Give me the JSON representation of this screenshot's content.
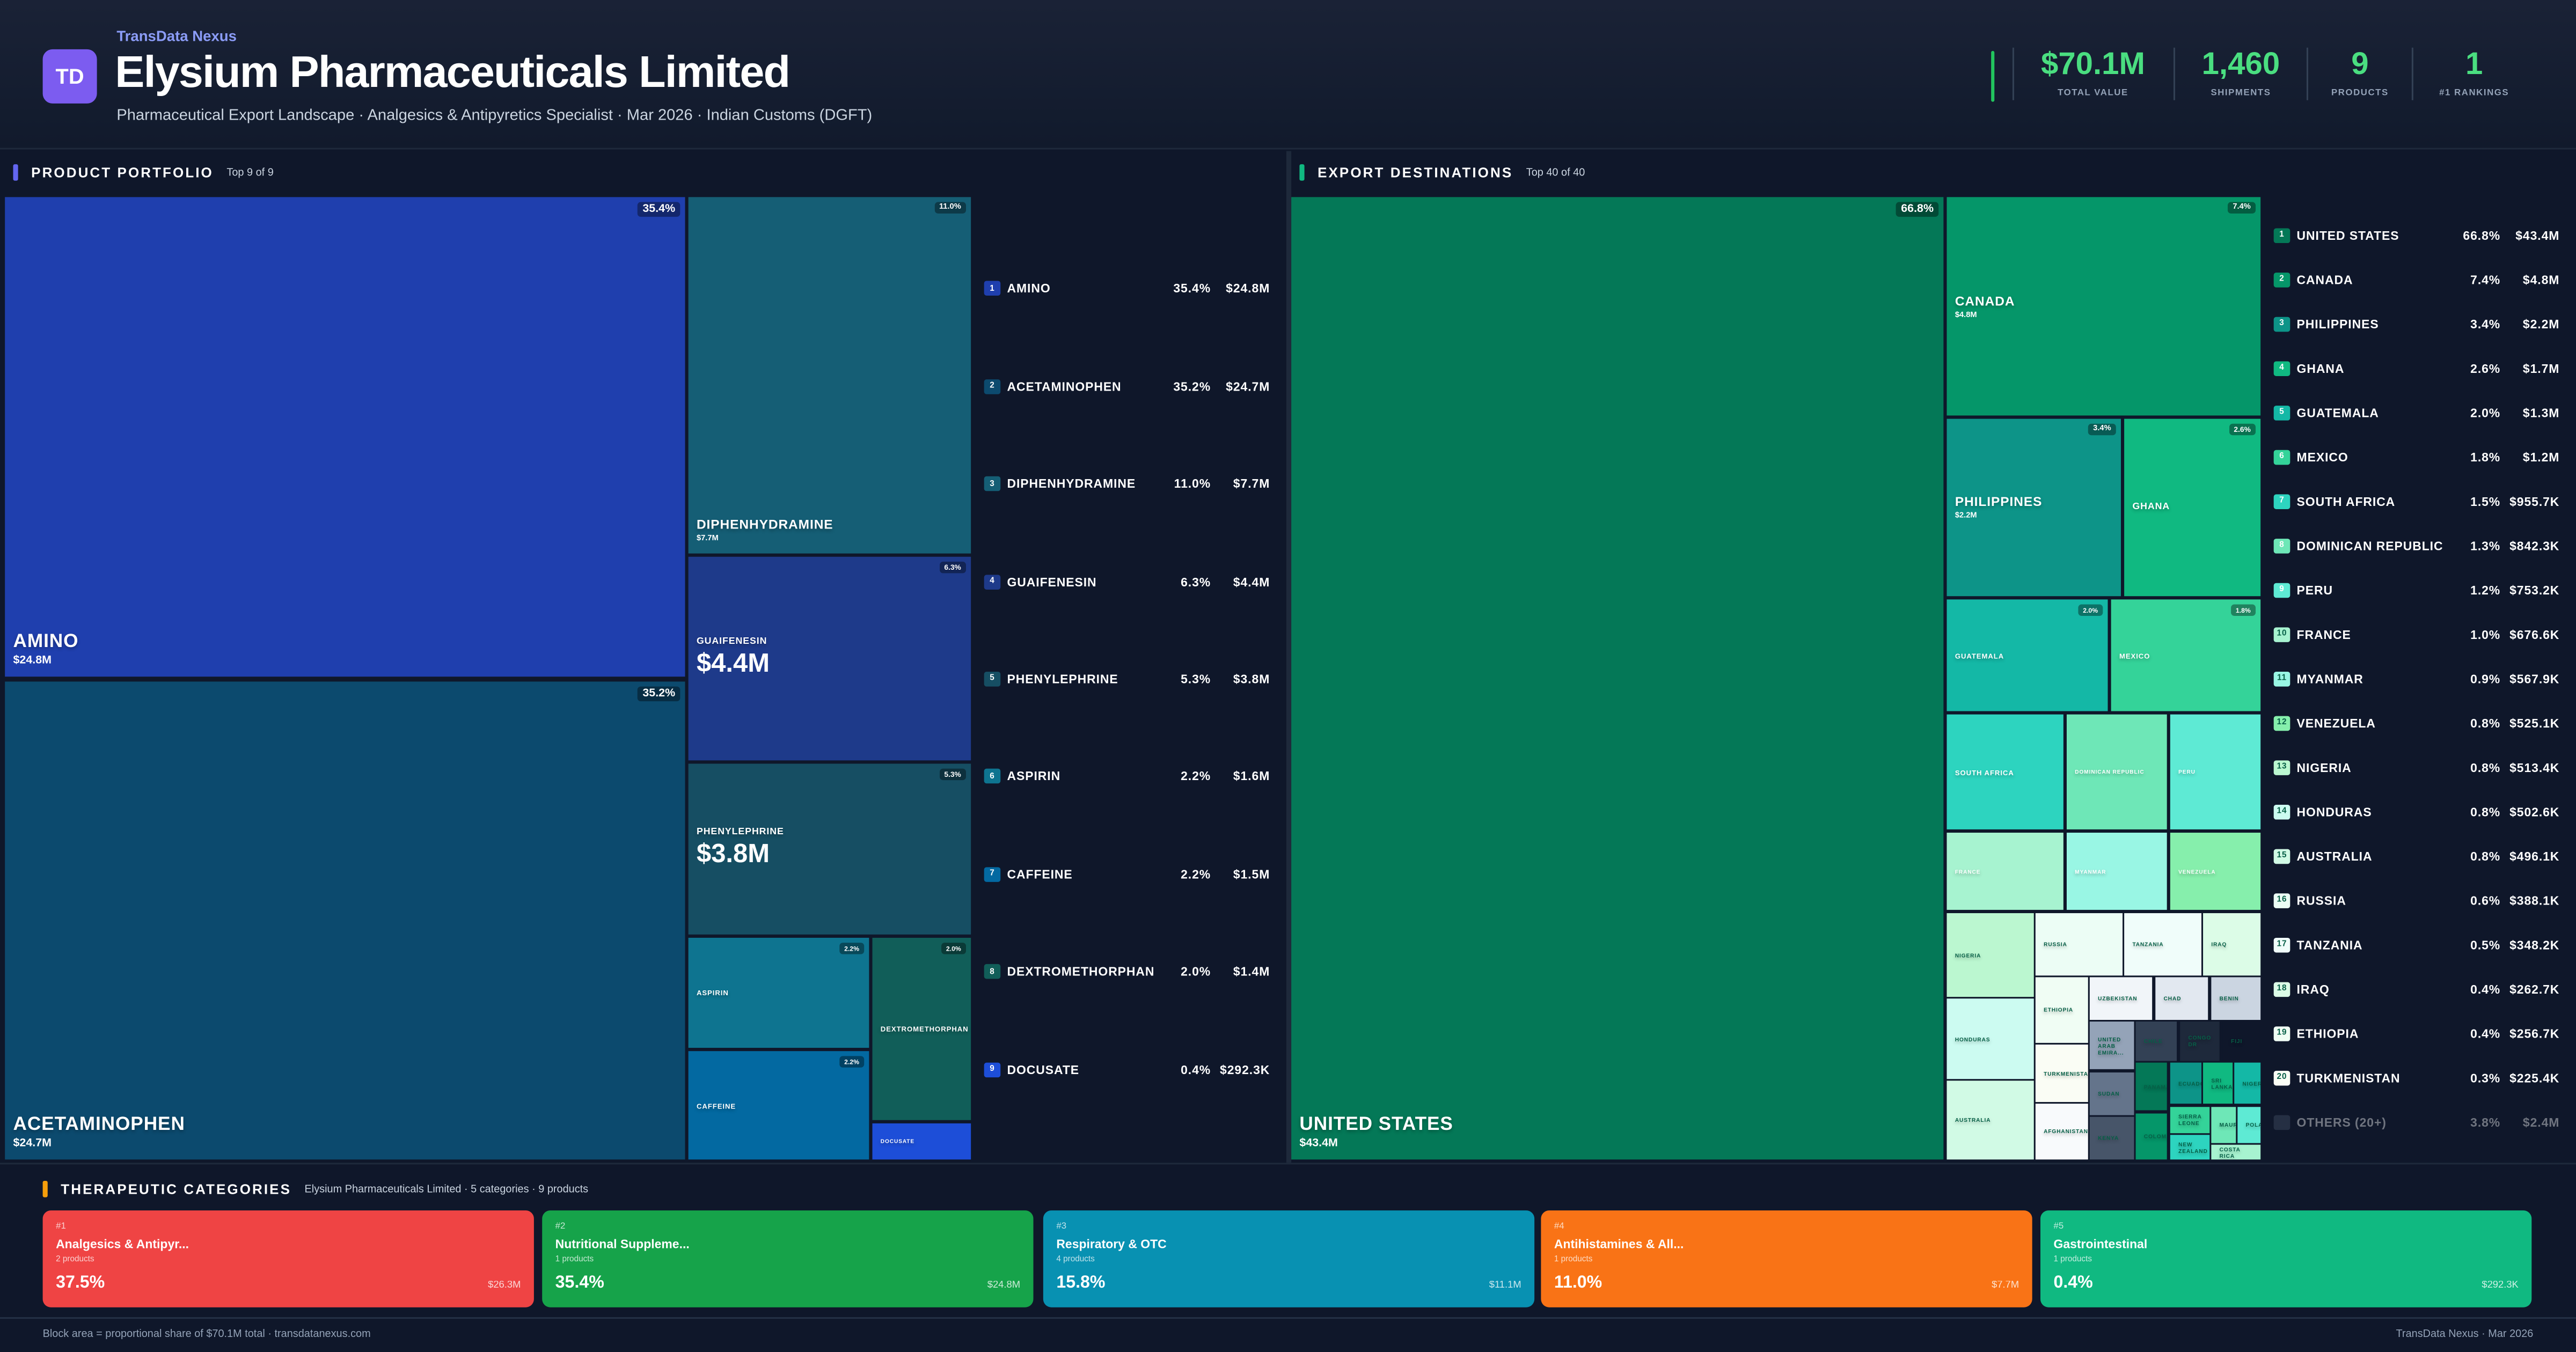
{
  "header": {
    "logo": "TD",
    "brand": "TransData Nexus",
    "title": "Elysium Pharmaceuticals Limited",
    "subtitle": "Pharmaceutical Export Landscape · Analgesics & Antipyretics Specialist · Mar 2026 · Indian Customs (DGFT)",
    "stats": [
      {
        "value": "$70.1M",
        "label": "TOTAL VALUE"
      },
      {
        "value": "1,460",
        "label": "SHIPMENTS"
      },
      {
        "value": "9",
        "label": "PRODUCTS"
      },
      {
        "value": "1",
        "label": "#1 RANKINGS"
      }
    ]
  },
  "products": {
    "title": "PRODUCT PORTFOLIO",
    "subtitle": "Top 9 of 9",
    "accent": "#6366f1",
    "items": [
      {
        "rank": "1",
        "name": "AMINO",
        "pct": "35.4%",
        "value": "$24.8M",
        "color": "#1f3fae"
      },
      {
        "rank": "2",
        "name": "ACETAMINOPHEN",
        "pct": "35.2%",
        "value": "$24.7M",
        "color": "#0c4a6e"
      },
      {
        "rank": "3",
        "name": "DIPHENHYDRAMINE",
        "pct": "11.0%",
        "value": "$7.7M",
        "color": "#155e75"
      },
      {
        "rank": "4",
        "name": "GUAIFENESIN",
        "pct": "6.3%",
        "value": "$4.4M",
        "color": "#1e3a8a"
      },
      {
        "rank": "5",
        "name": "PHENYLEPHRINE",
        "pct": "5.3%",
        "value": "$3.8M",
        "color": "#164e63"
      },
      {
        "rank": "6",
        "name": "ASPIRIN",
        "pct": "2.2%",
        "value": "$1.6M",
        "color": "#0e7490"
      },
      {
        "rank": "7",
        "name": "CAFFEINE",
        "pct": "2.2%",
        "value": "$1.5M",
        "color": "#0369a1"
      },
      {
        "rank": "8",
        "name": "DEXTROMETHORPHAN",
        "pct": "2.0%",
        "value": "$1.4M",
        "color": "#115e59"
      },
      {
        "rank": "9",
        "name": "DOCUSATE",
        "pct": "0.4%",
        "value": "$292.3K",
        "color": "#1d4ed8"
      }
    ]
  },
  "destinations": {
    "title": "EXPORT DESTINATIONS",
    "subtitle": "Top 40 of 40",
    "accent": "#10b981",
    "items": [
      {
        "rank": "1",
        "name": "UNITED STATES",
        "pct": "66.8%",
        "value": "$43.4M",
        "color": "#047857"
      },
      {
        "rank": "2",
        "name": "CANADA",
        "pct": "7.4%",
        "value": "$4.8M",
        "color": "#059669"
      },
      {
        "rank": "3",
        "name": "PHILIPPINES",
        "pct": "3.4%",
        "value": "$2.2M",
        "color": "#0d9488"
      },
      {
        "rank": "4",
        "name": "GHANA",
        "pct": "2.6%",
        "value": "$1.7M",
        "color": "#10b981"
      },
      {
        "rank": "5",
        "name": "GUATEMALA",
        "pct": "2.0%",
        "value": "$1.3M",
        "color": "#14b8a6"
      },
      {
        "rank": "6",
        "name": "MEXICO",
        "pct": "1.8%",
        "value": "$1.2M",
        "color": "#34d399"
      },
      {
        "rank": "7",
        "name": "SOUTH AFRICA",
        "pct": "1.5%",
        "value": "$955.7K",
        "color": "#2dd4bf"
      },
      {
        "rank": "8",
        "name": "DOMINICAN REPUBLIC",
        "pct": "1.3%",
        "value": "$842.3K",
        "color": "#6ee7b7"
      },
      {
        "rank": "9",
        "name": "PERU",
        "pct": "1.2%",
        "value": "$753.2K",
        "color": "#5eead4"
      },
      {
        "rank": "10",
        "name": "FRANCE",
        "pct": "1.0%",
        "value": "$676.6K",
        "color": "#a7f3d0"
      },
      {
        "rank": "11",
        "name": "MYANMAR",
        "pct": "0.9%",
        "value": "$567.9K",
        "color": "#99f6e4"
      },
      {
        "rank": "12",
        "name": "VENEZUELA",
        "pct": "0.8%",
        "value": "$525.1K",
        "color": "#86efac"
      },
      {
        "rank": "13",
        "name": "NIGERIA",
        "pct": "0.8%",
        "value": "$513.4K",
        "color": "#bbf7d0"
      },
      {
        "rank": "14",
        "name": "HONDURAS",
        "pct": "0.8%",
        "value": "$502.6K",
        "color": "#ccfbf1"
      },
      {
        "rank": "15",
        "name": "AUSTRALIA",
        "pct": "0.8%",
        "value": "$496.1K",
        "color": "#d1fae5"
      },
      {
        "rank": "16",
        "name": "RUSSIA",
        "pct": "0.6%",
        "value": "$388.1K",
        "color": "#ecfdf5"
      },
      {
        "rank": "17",
        "name": "TANZANIA",
        "pct": "0.5%",
        "value": "$348.2K",
        "color": "#f0fdfa"
      },
      {
        "rank": "18",
        "name": "IRAQ",
        "pct": "0.4%",
        "value": "$262.7K",
        "color": "#dcfce7"
      },
      {
        "rank": "19",
        "name": "ETHIOPIA",
        "pct": "0.4%",
        "value": "$256.7K",
        "color": "#f0fdf4"
      },
      {
        "rank": "20",
        "name": "TURKMENISTAN",
        "pct": "0.3%",
        "value": "$225.4K",
        "color": "#fafdf5"
      }
    ],
    "others": {
      "name": "OTHERS (20+)",
      "pct": "3.8%",
      "value": "$2.4M",
      "color": "#475569"
    },
    "other_tiles": [
      {
        "name": "AFGHANISTAN",
        "color": "#f8fafc"
      },
      {
        "name": "UZBEKISTAN",
        "color": "#f1f5f9"
      },
      {
        "name": "CHAD",
        "color": "#e2e8f0"
      },
      {
        "name": "BENIN",
        "color": "#cbd5e1"
      },
      {
        "name": "UNITED ARAB EMIRA...",
        "color": "#94a3b8"
      },
      {
        "name": "SUDAN",
        "color": "#64748b"
      },
      {
        "name": "KENYA",
        "color": "#475569"
      },
      {
        "name": "CHILE",
        "color": "#334155"
      },
      {
        "name": "CONGO DR",
        "color": "#1e293b"
      },
      {
        "name": "FIJI",
        "color": "#0f172a"
      },
      {
        "name": "PANAMA",
        "color": "#047857"
      },
      {
        "name": "COLOMBIA",
        "color": "#059669"
      },
      {
        "name": "ECUADOR",
        "color": "#0d9488"
      },
      {
        "name": "SRI LANKA",
        "color": "#10b981"
      },
      {
        "name": "NIGER",
        "color": "#14b8a6"
      },
      {
        "name": "SIERRA LEONE",
        "color": "#34d399"
      },
      {
        "name": "NEW ZEALAND",
        "color": "#2dd4bf"
      },
      {
        "name": "MAURITIUS",
        "color": "#6ee7b7"
      },
      {
        "name": "POLAND",
        "color": "#5eead4"
      },
      {
        "name": "COSTA RICA",
        "color": "#a7f3d0"
      }
    ]
  },
  "categories": {
    "title": "THERAPEUTIC CATEGORIES",
    "subtitle": "Elysium Pharmaceuticals Limited · 5 categories · 9 products",
    "accent": "#f59e0b",
    "items": [
      {
        "rank": "#1",
        "name": "Analgesics & Antipyr...",
        "products": "2 products",
        "pct": "37.5%",
        "value": "$26.3M",
        "color": "#ef4444"
      },
      {
        "rank": "#2",
        "name": "Nutritional Suppleme...",
        "products": "1 products",
        "pct": "35.4%",
        "value": "$24.8M",
        "color": "#16a34a"
      },
      {
        "rank": "#3",
        "name": "Respiratory & OTC",
        "products": "4 products",
        "pct": "15.8%",
        "value": "$11.1M",
        "color": "#0891b2"
      },
      {
        "rank": "#4",
        "name": "Antihistamines & All...",
        "products": "1 products",
        "pct": "11.0%",
        "value": "$7.7M",
        "color": "#f97316"
      },
      {
        "rank": "#5",
        "name": "Gastrointestinal",
        "products": "1 products",
        "pct": "0.4%",
        "value": "$292.3K",
        "color": "#10b981"
      }
    ]
  },
  "footer": {
    "left": "Block area = proportional share of $70.1M total · transdatanexus.com",
    "right": "TransData Nexus · Mar 2026"
  }
}
